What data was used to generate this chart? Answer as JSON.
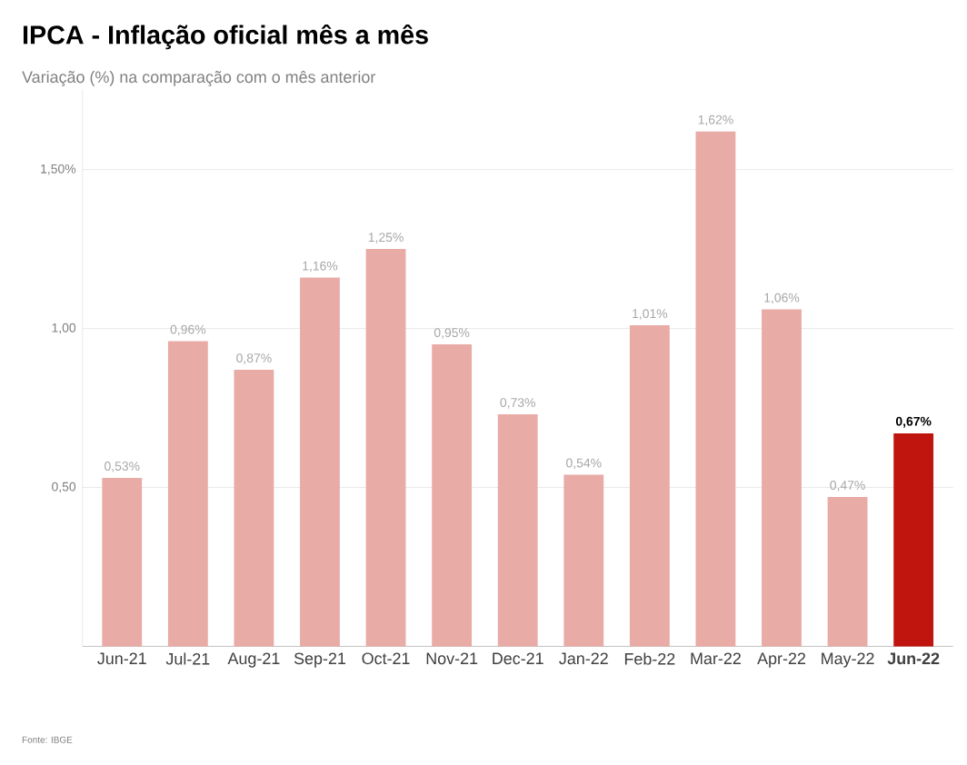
{
  "chart_data": {
    "type": "bar",
    "title": "IPCA - Inflação oficial mês a mês",
    "subtitle": "Variação (%) na comparação com o mês anterior",
    "categories": [
      "Jun-21",
      "Jul-21",
      "Aug-21",
      "Sep-21",
      "Oct-21",
      "Nov-21",
      "Dec-21",
      "Jan-22",
      "Feb-22",
      "Mar-22",
      "Apr-22",
      "May-22",
      "Jun-22"
    ],
    "values": [
      0.53,
      0.96,
      0.87,
      1.16,
      1.25,
      0.95,
      0.73,
      0.54,
      1.01,
      1.62,
      1.06,
      0.47,
      0.67
    ],
    "colors": [
      "#e8aba6",
      "#e8aba6",
      "#e8aba6",
      "#e8aba6",
      "#e8aba6",
      "#e8aba6",
      "#e8aba6",
      "#e8aba6",
      "#e8aba6",
      "#e8aba6",
      "#e8aba6",
      "#e8aba6",
      "#c0150f"
    ],
    "value_labels": [
      "0,53%",
      "0,96%",
      "0,87%",
      "1,16%",
      "1,25%",
      "0,95%",
      "0,73%",
      "0,54%",
      "1,01%",
      "1,62%",
      "1,06%",
      "0,47%",
      "**0,67%**"
    ],
    "yticks": [
      {
        "value": 0.5,
        "label": "0,50"
      },
      {
        "value": 1.0,
        "label": "1,00"
      },
      {
        "value": 1.5,
        "label": "1,50%"
      }
    ],
    "ylim": [
      0,
      1.75
    ],
    "grid": "y",
    "annotations": [
      "Fonte: IBGE"
    ]
  }
}
